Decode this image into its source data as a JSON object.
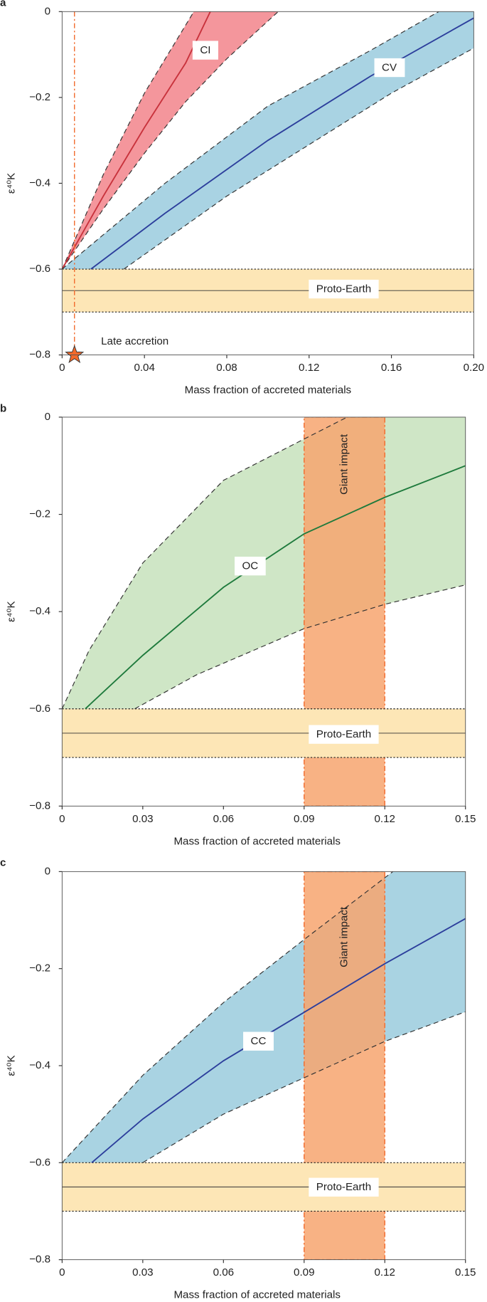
{
  "chart_data": [
    {
      "type": "line",
      "panel": "a",
      "x_label": "Mass fraction of accreted materials",
      "y_label": "ε⁴⁰K",
      "xlim": [
        0,
        0.2
      ],
      "ylim": [
        -0.8,
        0
      ],
      "xticks": [
        0,
        0.04,
        0.08,
        0.12,
        0.16,
        {
          "value": 0.2,
          "label": "0.20"
        }
      ],
      "yticks": [
        {
          "value": -0.8,
          "label": "−0.8"
        },
        {
          "value": -0.6,
          "label": "−0.6"
        },
        {
          "value": -0.4,
          "label": "−0.4"
        },
        {
          "value": -0.2,
          "label": "−0.2"
        },
        0
      ],
      "models": [
        {
          "label": "CI",
          "fill": "#f4969c",
          "color": "#c8323c",
          "center": {
            "x": [
              0,
              0.02,
              0.04,
              0.06,
              0.072
            ],
            "y": [
              -0.6,
              -0.43,
              -0.27,
              -0.12,
              0
            ]
          },
          "upper": {
            "x": [
              0,
              0.02,
              0.04,
              0.064
            ],
            "y": [
              -0.6,
              -0.38,
              -0.19,
              0
            ]
          },
          "lower": {
            "x": [
              0,
              0.02,
              0.04,
              0.06,
              0.08,
              0.105
            ],
            "y": [
              -0.6,
              -0.46,
              -0.33,
              -0.21,
              -0.11,
              0
            ]
          }
        },
        {
          "label": "CV",
          "fill": "#a9d3e3",
          "color": "#2c3e9c",
          "center": {
            "x": [
              0.014,
              0.05,
              0.1,
              0.15,
              0.2
            ],
            "y": [
              -0.6,
              -0.47,
              -0.3,
              -0.15,
              -0.015
            ]
          },
          "upper": {
            "x": [
              0,
              0.05,
              0.1,
              0.15,
              0.183
            ],
            "y": [
              -0.6,
              -0.4,
              -0.22,
              -0.09,
              0
            ]
          },
          "lower": {
            "x": [
              0.03,
              0.08,
              0.12,
              0.16,
              0.2
            ],
            "y": [
              -0.6,
              -0.43,
              -0.31,
              -0.19,
              -0.085
            ]
          }
        }
      ],
      "reference": {
        "label": "Proto-Earth",
        "lower": -0.7,
        "center": -0.65,
        "upper": -0.6
      },
      "marker": {
        "label": "Late accretion",
        "x": 0.006
      }
    },
    {
      "type": "line",
      "panel": "b",
      "x_label": "Mass fraction of accreted materials",
      "y_label": "ε⁴⁰K",
      "xlim": [
        0,
        0.15
      ],
      "ylim": [
        -0.8,
        0
      ],
      "xticks": [
        0,
        0.03,
        0.06,
        0.09,
        0.12,
        0.15
      ],
      "yticks": [
        {
          "value": -0.8,
          "label": "−0.8"
        },
        {
          "value": -0.6,
          "label": "−0.6"
        },
        {
          "value": -0.4,
          "label": "−0.4"
        },
        {
          "value": -0.2,
          "label": "−0.2"
        },
        0
      ],
      "models": [
        {
          "label": "OC",
          "fill": "#cfe6c6",
          "color": "#1e7a3c",
          "center": {
            "x": [
              0.0086,
              0.03,
              0.06,
              0.09,
              0.12,
              0.15
            ],
            "y": [
              -0.6,
              -0.49,
              -0.35,
              -0.24,
              -0.165,
              -0.1
            ]
          },
          "upper": {
            "x": [
              0,
              0.01,
              0.03,
              0.06,
              0.09,
              0.106
            ],
            "y": [
              -0.6,
              -0.48,
              -0.3,
              -0.13,
              -0.045,
              0
            ]
          },
          "lower": {
            "x": [
              0.027,
              0.05,
              0.09,
              0.12,
              0.15
            ],
            "y": [
              -0.6,
              -0.53,
              -0.435,
              -0.385,
              -0.345
            ]
          }
        }
      ],
      "reference": {
        "label": "Proto-Earth",
        "lower": -0.7,
        "center": -0.65,
        "upper": -0.6
      },
      "impact": {
        "label": "Giant impact",
        "x_range": [
          0.09,
          0.12
        ]
      }
    },
    {
      "type": "line",
      "panel": "c",
      "x_label": "Mass fraction of accreted materials",
      "y_label": "ε⁴⁰K",
      "xlim": [
        0,
        0.15
      ],
      "ylim": [
        -0.8,
        0
      ],
      "xticks": [
        0,
        0.03,
        0.06,
        0.09,
        0.12,
        0.15
      ],
      "yticks": [
        {
          "value": -0.8,
          "label": "−0.8"
        },
        {
          "value": -0.6,
          "label": "−0.6"
        },
        {
          "value": -0.4,
          "label": "−0.4"
        },
        {
          "value": -0.2,
          "label": "−0.2"
        },
        0
      ],
      "models": [
        {
          "label": "CC",
          "fill": "#a9d3e2",
          "color": "#2c3e9c",
          "center": {
            "x": [
              0.011,
              0.03,
              0.06,
              0.09,
              0.12,
              0.15
            ],
            "y": [
              -0.6,
              -0.51,
              -0.39,
              -0.29,
              -0.19,
              -0.097
            ]
          },
          "upper": {
            "x": [
              0,
              0.03,
              0.06,
              0.09,
              0.123
            ],
            "y": [
              -0.6,
              -0.42,
              -0.27,
              -0.14,
              0
            ]
          },
          "lower": {
            "x": [
              0.03,
              0.06,
              0.09,
              0.12,
              0.15
            ],
            "y": [
              -0.6,
              -0.5,
              -0.425,
              -0.35,
              -0.289
            ]
          }
        }
      ],
      "reference": {
        "label": "Proto-Earth",
        "lower": -0.7,
        "center": -0.65,
        "upper": -0.6
      },
      "impact": {
        "label": "Giant impact",
        "x_range": [
          0.09,
          0.12
        ]
      }
    }
  ]
}
